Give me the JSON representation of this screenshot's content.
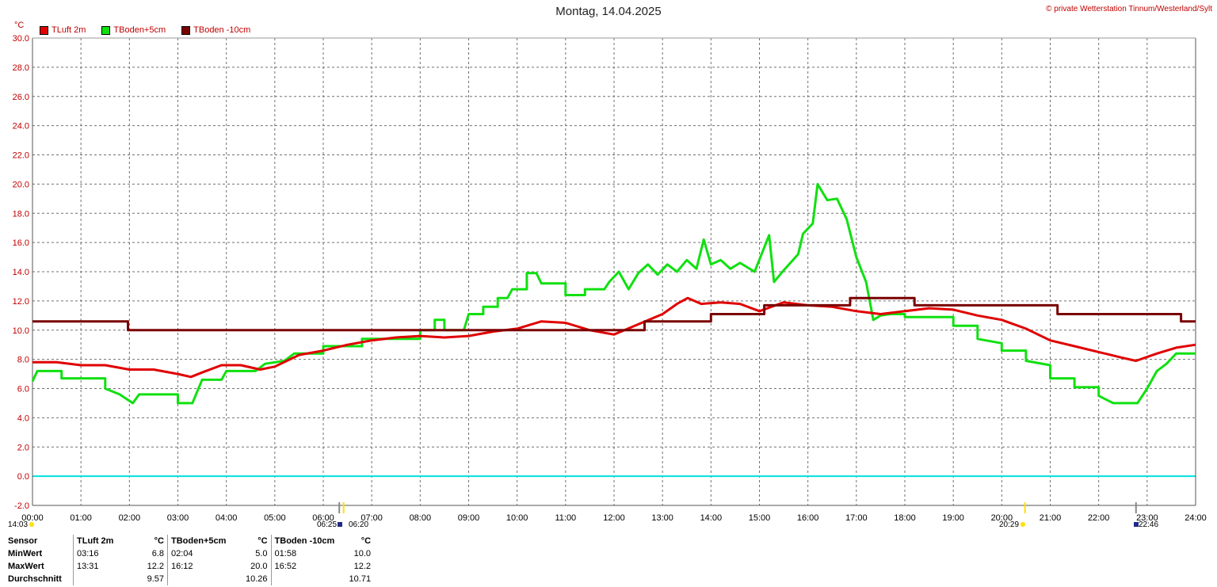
{
  "header": {
    "title": "Montag, 14.04.2025",
    "copyright": "© private Wetterstation Tinnum/Westerland/Sylt",
    "unit": "°C"
  },
  "chart_data": {
    "type": "line",
    "title": "Montag, 14.04.2025",
    "ylabel": "°C",
    "ylim": [
      -2.0,
      30.0
    ],
    "xlim": [
      0,
      24
    ],
    "y_ticks": [
      "-2.0",
      "0.0",
      "2.0",
      "4.0",
      "6.0",
      "8.0",
      "10.0",
      "12.0",
      "14.0",
      "16.0",
      "18.0",
      "20.0",
      "22.0",
      "24.0",
      "26.0",
      "28.0",
      "30.0"
    ],
    "x_ticks": [
      "00:00",
      "01:00",
      "02:00",
      "03:00",
      "04:00",
      "05:00",
      "06:00",
      "07:00",
      "08:00",
      "09:00",
      "10:00",
      "11:00",
      "12:00",
      "13:00",
      "14:00",
      "15:00",
      "16:00",
      "17:00",
      "18:00",
      "19:00",
      "20:00",
      "21:00",
      "22:00",
      "23:00",
      "24:00"
    ],
    "grid": true,
    "legend_position": "top-left",
    "zero_line_color": "#00e0e0",
    "series": [
      {
        "name": "TLuft 2m",
        "color": "#e00000",
        "points": [
          [
            0,
            7.8
          ],
          [
            0.5,
            7.8
          ],
          [
            1,
            7.6
          ],
          [
            1.5,
            7.6
          ],
          [
            2,
            7.3
          ],
          [
            2.5,
            7.3
          ],
          [
            3,
            7.0
          ],
          [
            3.27,
            6.8
          ],
          [
            3.5,
            7.1
          ],
          [
            3.9,
            7.6
          ],
          [
            4.3,
            7.6
          ],
          [
            4.7,
            7.3
          ],
          [
            5.0,
            7.5
          ],
          [
            5.5,
            8.3
          ],
          [
            6.0,
            8.6
          ],
          [
            6.5,
            9.0
          ],
          [
            7,
            9.3
          ],
          [
            7.5,
            9.5
          ],
          [
            8,
            9.6
          ],
          [
            8.5,
            9.5
          ],
          [
            9,
            9.6
          ],
          [
            9.5,
            9.9
          ],
          [
            10,
            10.1
          ],
          [
            10.5,
            10.6
          ],
          [
            11,
            10.5
          ],
          [
            11.5,
            10.0
          ],
          [
            12,
            9.7
          ],
          [
            12.5,
            10.4
          ],
          [
            13,
            11.1
          ],
          [
            13.3,
            11.8
          ],
          [
            13.52,
            12.2
          ],
          [
            13.8,
            11.8
          ],
          [
            14.2,
            11.9
          ],
          [
            14.6,
            11.8
          ],
          [
            15,
            11.3
          ],
          [
            15.5,
            11.9
          ],
          [
            16,
            11.7
          ],
          [
            16.5,
            11.6
          ],
          [
            17,
            11.3
          ],
          [
            17.5,
            11.1
          ],
          [
            18,
            11.3
          ],
          [
            18.5,
            11.5
          ],
          [
            19,
            11.4
          ],
          [
            19.5,
            11.0
          ],
          [
            20,
            10.7
          ],
          [
            20.5,
            10.1
          ],
          [
            21,
            9.3
          ],
          [
            21.5,
            8.9
          ],
          [
            22,
            8.5
          ],
          [
            22.5,
            8.1
          ],
          [
            22.77,
            7.9
          ],
          [
            23.2,
            8.4
          ],
          [
            23.6,
            8.8
          ],
          [
            24,
            9.0
          ]
        ]
      },
      {
        "name": "TBoden+5cm",
        "color": "#10e010",
        "points": [
          [
            0,
            6.5
          ],
          [
            0.1,
            7.2
          ],
          [
            0.6,
            7.2
          ],
          [
            0.6,
            6.7
          ],
          [
            1.5,
            6.7
          ],
          [
            1.5,
            6.0
          ],
          [
            1.8,
            5.6
          ],
          [
            2.07,
            5.0
          ],
          [
            2.2,
            5.6
          ],
          [
            3.0,
            5.6
          ],
          [
            3.0,
            5.0
          ],
          [
            3.3,
            5.0
          ],
          [
            3.5,
            6.6
          ],
          [
            3.9,
            6.6
          ],
          [
            4.0,
            7.2
          ],
          [
            4.6,
            7.2
          ],
          [
            4.8,
            7.7
          ],
          [
            5.2,
            7.9
          ],
          [
            5.4,
            8.4
          ],
          [
            6.0,
            8.4
          ],
          [
            6.0,
            8.9
          ],
          [
            6.8,
            8.9
          ],
          [
            6.8,
            9.4
          ],
          [
            8.0,
            9.4
          ],
          [
            8.0,
            10.0
          ],
          [
            8.3,
            10.0
          ],
          [
            8.3,
            10.7
          ],
          [
            8.5,
            10.7
          ],
          [
            8.5,
            10.0
          ],
          [
            8.9,
            10.0
          ],
          [
            9.0,
            11.1
          ],
          [
            9.3,
            11.1
          ],
          [
            9.3,
            11.6
          ],
          [
            9.6,
            11.6
          ],
          [
            9.6,
            12.2
          ],
          [
            9.8,
            12.2
          ],
          [
            9.9,
            12.8
          ],
          [
            10.2,
            12.8
          ],
          [
            10.2,
            13.9
          ],
          [
            10.4,
            13.9
          ],
          [
            10.5,
            13.2
          ],
          [
            11.0,
            13.2
          ],
          [
            11.0,
            12.4
          ],
          [
            11.4,
            12.4
          ],
          [
            11.4,
            12.8
          ],
          [
            11.8,
            12.8
          ],
          [
            11.9,
            13.3
          ],
          [
            12.1,
            14.0
          ],
          [
            12.3,
            12.8
          ],
          [
            12.5,
            13.9
          ],
          [
            12.7,
            14.5
          ],
          [
            12.9,
            13.8
          ],
          [
            13.1,
            14.5
          ],
          [
            13.3,
            14.0
          ],
          [
            13.5,
            14.8
          ],
          [
            13.7,
            14.2
          ],
          [
            13.85,
            16.2
          ],
          [
            14.0,
            14.5
          ],
          [
            14.2,
            14.8
          ],
          [
            14.4,
            14.2
          ],
          [
            14.6,
            14.6
          ],
          [
            14.9,
            14.0
          ],
          [
            15.2,
            16.5
          ],
          [
            15.3,
            13.3
          ],
          [
            15.5,
            14.1
          ],
          [
            15.8,
            15.2
          ],
          [
            15.9,
            16.6
          ],
          [
            16.1,
            17.3
          ],
          [
            16.2,
            20.0
          ],
          [
            16.4,
            18.9
          ],
          [
            16.6,
            19.0
          ],
          [
            16.8,
            17.6
          ],
          [
            17.0,
            15.0
          ],
          [
            17.2,
            13.3
          ],
          [
            17.35,
            10.7
          ],
          [
            17.5,
            11.0
          ],
          [
            17.7,
            11.1
          ],
          [
            18.0,
            11.1
          ],
          [
            18.0,
            10.9
          ],
          [
            19.0,
            10.9
          ],
          [
            19.0,
            10.3
          ],
          [
            19.5,
            10.3
          ],
          [
            19.5,
            9.4
          ],
          [
            20.0,
            9.1
          ],
          [
            20.0,
            8.6
          ],
          [
            20.5,
            8.6
          ],
          [
            20.5,
            7.9
          ],
          [
            21.0,
            7.6
          ],
          [
            21.0,
            6.7
          ],
          [
            21.5,
            6.7
          ],
          [
            21.5,
            6.1
          ],
          [
            22.0,
            6.1
          ],
          [
            22.0,
            5.5
          ],
          [
            22.3,
            5.0
          ],
          [
            22.8,
            5.0
          ],
          [
            23.0,
            6.0
          ],
          [
            23.2,
            7.2
          ],
          [
            23.4,
            7.7
          ],
          [
            23.6,
            8.4
          ],
          [
            24,
            8.4
          ]
        ]
      },
      {
        "name": "TBoden -10cm",
        "color": "#7a0000",
        "points": [
          [
            0,
            10.6
          ],
          [
            1.97,
            10.6
          ],
          [
            1.97,
            10.0
          ],
          [
            12.63,
            10.0
          ],
          [
            12.63,
            10.6
          ],
          [
            14.0,
            10.6
          ],
          [
            14.0,
            11.1
          ],
          [
            15.1,
            11.1
          ],
          [
            15.1,
            11.7
          ],
          [
            16.87,
            11.7
          ],
          [
            16.87,
            12.2
          ],
          [
            18.2,
            12.2
          ],
          [
            18.2,
            11.7
          ],
          [
            21.15,
            11.7
          ],
          [
            21.15,
            11.1
          ],
          [
            23.7,
            11.1
          ],
          [
            23.7,
            10.6
          ],
          [
            24,
            10.6
          ]
        ]
      }
    ]
  },
  "events": {
    "sunrise_prev": "14:03",
    "sunrise": "06:25",
    "moonset": "06:20",
    "sunset": "20:29",
    "moonrise": "22:46"
  },
  "stats": {
    "header": [
      "Sensor",
      "TLuft 2m",
      "°C",
      "TBoden+5cm",
      "°C",
      "TBoden -10cm",
      "°C"
    ],
    "rows": [
      {
        "label": "MinWert",
        "c1_time": "03:16",
        "c1_val": "6.8",
        "c2_time": "02:04",
        "c2_val": "5.0",
        "c3_time": "01:58",
        "c3_val": "10.0"
      },
      {
        "label": "MaxWert",
        "c1_time": "13:31",
        "c1_val": "12.2",
        "c2_time": "16:12",
        "c2_val": "20.0",
        "c3_time": "16:52",
        "c3_val": "12.2"
      },
      {
        "label": "Durchschnitt",
        "c1_time": "",
        "c1_val": "9.57",
        "c2_time": "",
        "c2_val": "10.26",
        "c3_time": "",
        "c3_val": "10.71"
      }
    ]
  }
}
